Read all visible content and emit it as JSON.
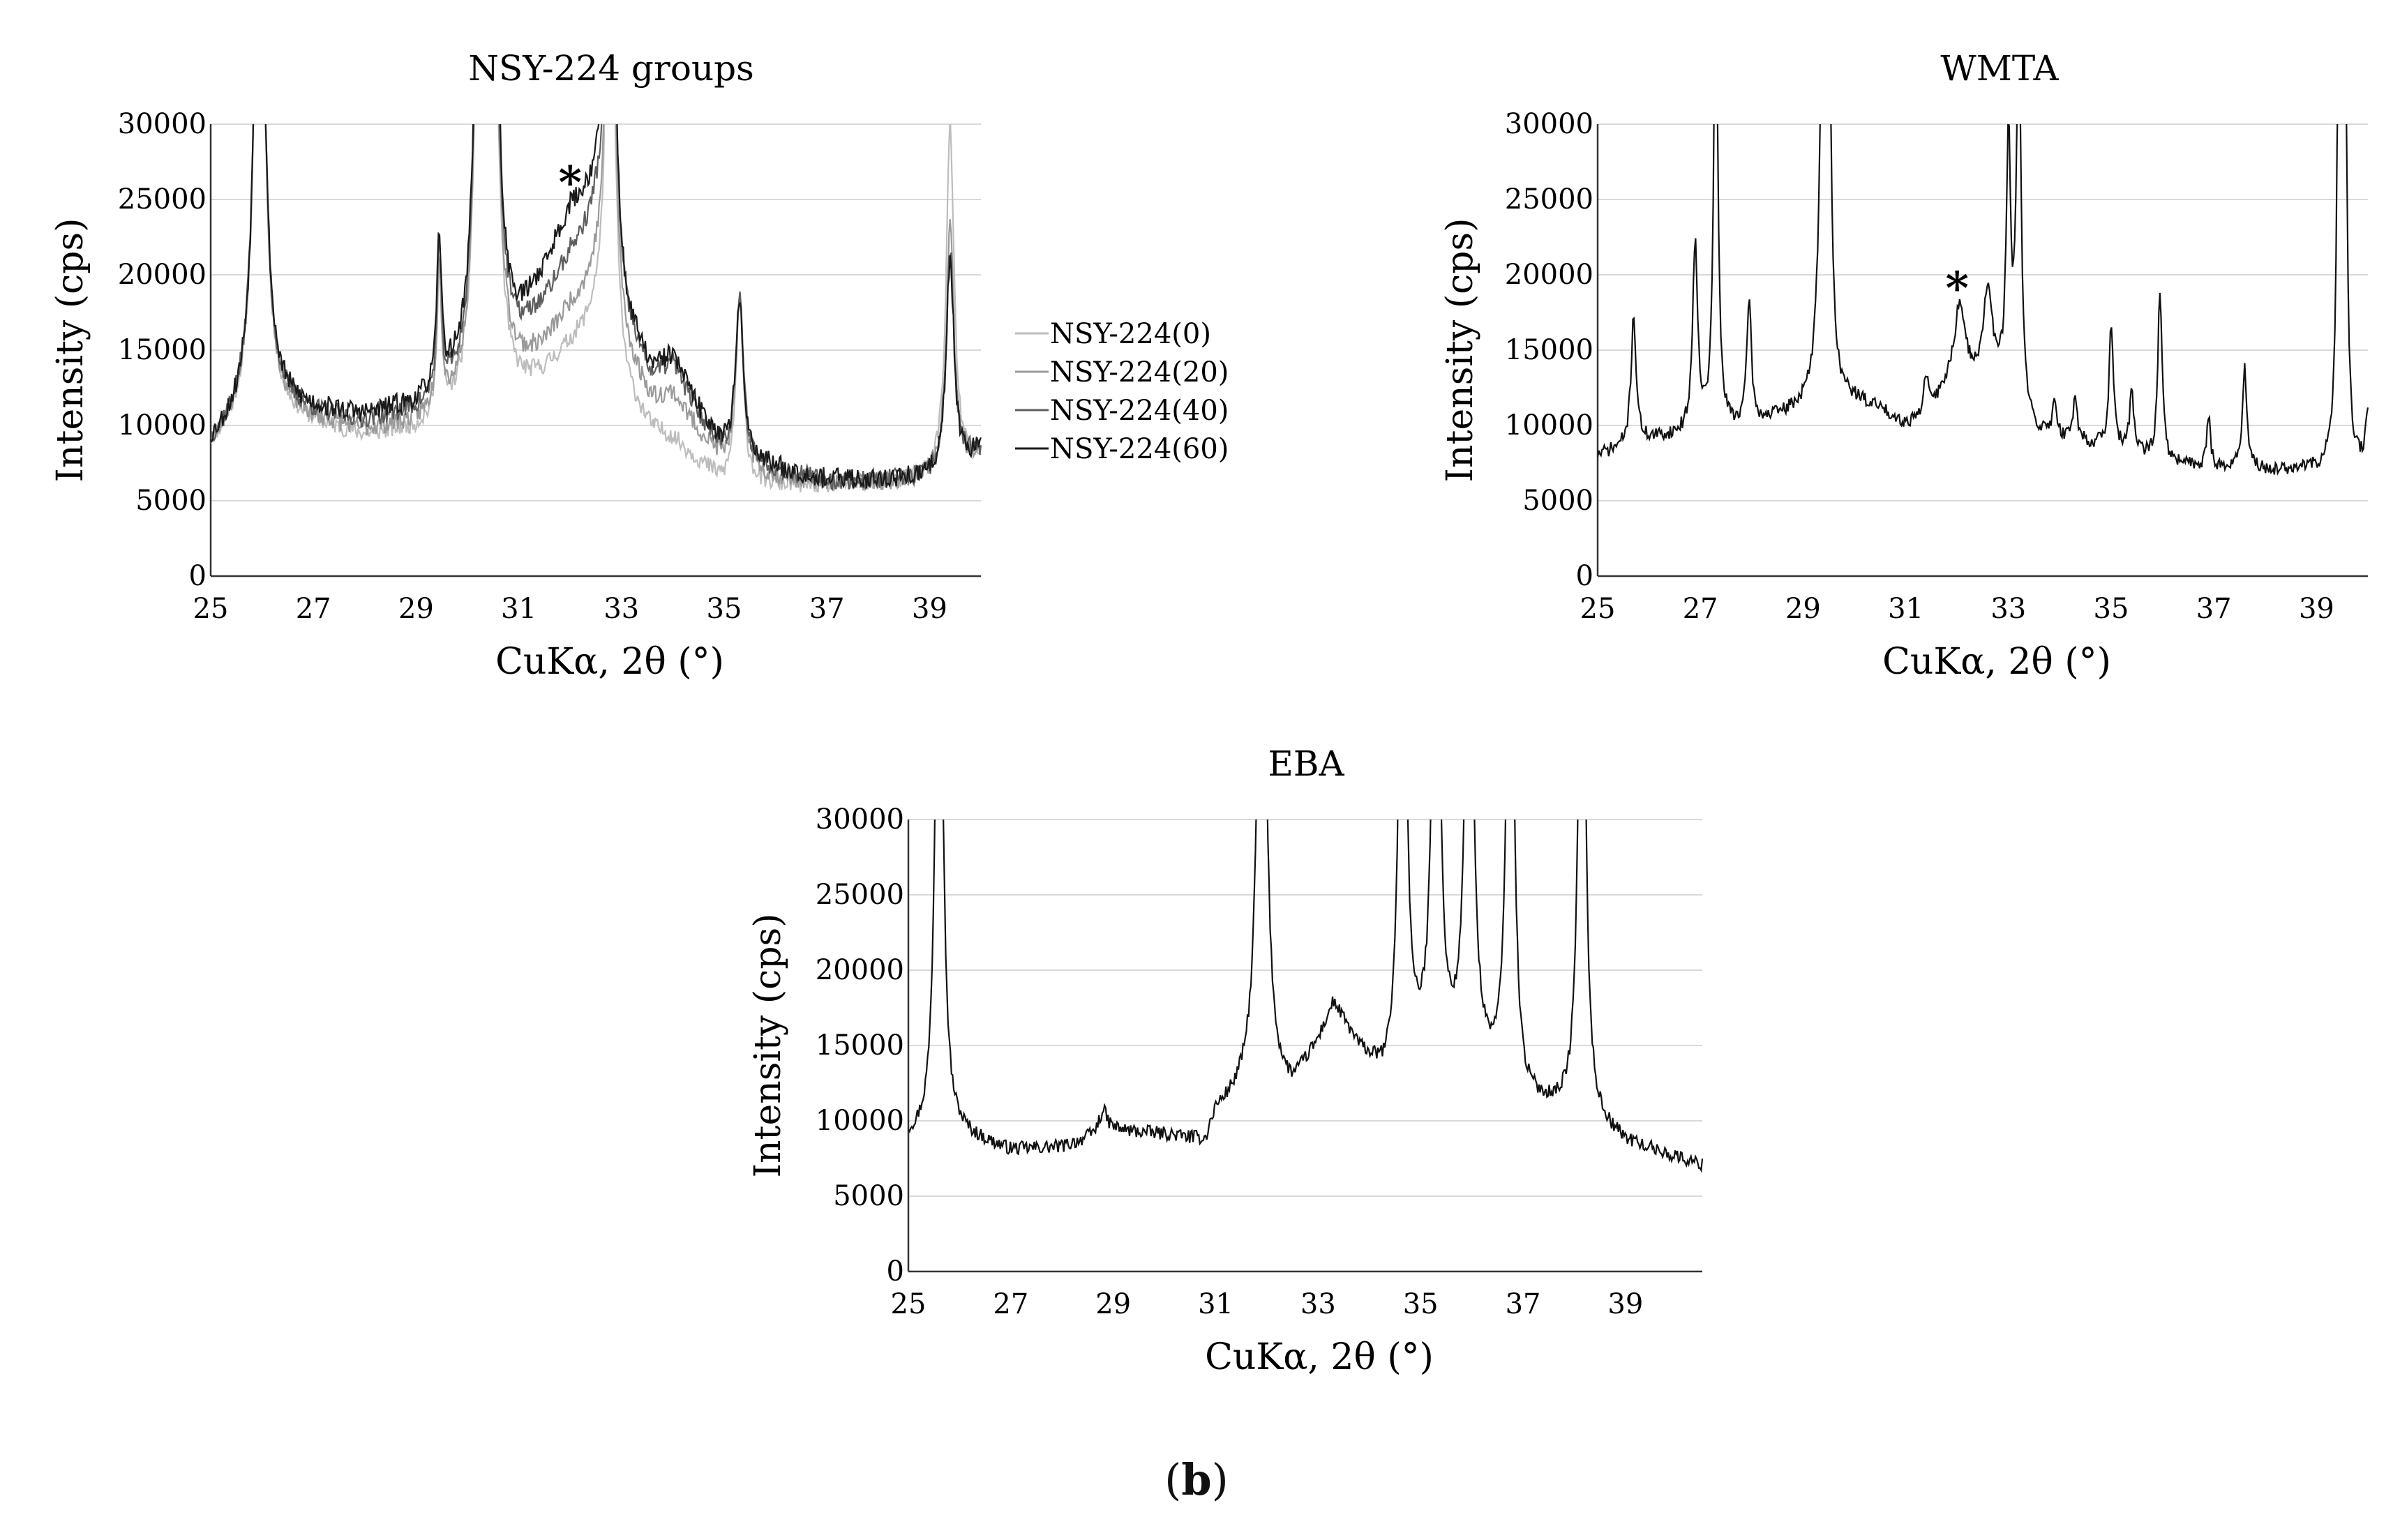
{
  "caption": {
    "open": "(",
    "letter": "b",
    "close": ")"
  },
  "chart_data": [
    {
      "id": "nsy",
      "type": "line",
      "title": "NSY-224 groups",
      "xlabel": "CuKα, 2θ (°)",
      "ylabel": "Intensity (cps)",
      "xlim": [
        25,
        40
      ],
      "ylim": [
        0,
        30000
      ],
      "xticks": [
        25,
        27,
        29,
        31,
        33,
        35,
        37,
        39
      ],
      "yticks": [
        0,
        5000,
        10000,
        15000,
        20000,
        25000,
        30000
      ],
      "grid": "horizontal",
      "legend_position": "right",
      "annotation": {
        "text": "*",
        "x": 32.0,
        "y": 26500
      },
      "series": [
        {
          "name": "NSY-224(0)",
          "color": "#bdbdbd",
          "base": [
            [
              25,
              8500
            ],
            [
              25.7,
              10500
            ],
            [
              26.3,
              10800
            ],
            [
              27,
              10000
            ],
            [
              28,
              9200
            ],
            [
              29,
              9600
            ],
            [
              30,
              10800
            ],
            [
              31,
              12000
            ],
            [
              31.5,
              13200
            ],
            [
              32,
              15000
            ],
            [
              32.5,
              16500
            ],
            [
              33,
              12000
            ],
            [
              33.6,
              9500
            ],
            [
              34,
              9000
            ],
            [
              34.5,
              7500
            ],
            [
              35,
              6000
            ],
            [
              35.5,
              6000
            ],
            [
              36,
              6000
            ],
            [
              37,
              6000
            ],
            [
              38,
              6000
            ],
            [
              39,
              6500
            ],
            [
              40,
              7800
            ]
          ],
          "peaks": [
            [
              25.95,
              38000,
              0.12
            ],
            [
              29.45,
              10000,
              0.05
            ],
            [
              30.25,
              36000,
              0.11
            ],
            [
              30.5,
              30000,
              0.11
            ],
            [
              32.78,
              38000,
              0.09
            ],
            [
              35.3,
              12000,
              0.09
            ],
            [
              39.4,
              23000,
              0.09
            ]
          ],
          "seed": 11,
          "noise": 600
        },
        {
          "name": "NSY-224(20)",
          "color": "#9a9a9a",
          "base": [
            [
              25,
              8500
            ],
            [
              25.7,
              10800
            ],
            [
              26.3,
              11000
            ],
            [
              27,
              10300
            ],
            [
              28,
              9600
            ],
            [
              29,
              10100
            ],
            [
              30,
              11500
            ],
            [
              31,
              13500
            ],
            [
              31.5,
              15000
            ],
            [
              32,
              17500
            ],
            [
              32.5,
              19000
            ],
            [
              33,
              14500
            ],
            [
              33.6,
              11500
            ],
            [
              34,
              12000
            ],
            [
              34.5,
              9500
            ],
            [
              35,
              7500
            ],
            [
              35.5,
              7000
            ],
            [
              36,
              6500
            ],
            [
              37,
              6200
            ],
            [
              38,
              6200
            ],
            [
              39,
              6500
            ],
            [
              40,
              8000
            ]
          ],
          "peaks": [
            [
              25.95,
              38000,
              0.12
            ],
            [
              29.45,
              10000,
              0.05
            ],
            [
              30.25,
              36000,
              0.11
            ],
            [
              30.5,
              30000,
              0.11
            ],
            [
              32.78,
              38000,
              0.09
            ],
            [
              35.3,
              11000,
              0.09
            ],
            [
              39.4,
              16000,
              0.09
            ]
          ],
          "seed": 23,
          "noise": 650
        },
        {
          "name": "NSY-224(40)",
          "color": "#5e5e5e",
          "base": [
            [
              25,
              8700
            ],
            [
              25.7,
              11000
            ],
            [
              26.3,
              11300
            ],
            [
              27,
              10700
            ],
            [
              28,
              10200
            ],
            [
              29,
              10800
            ],
            [
              30,
              12500
            ],
            [
              31,
              15500
            ],
            [
              31.5,
              17800
            ],
            [
              32,
              21000
            ],
            [
              32.5,
              23000
            ],
            [
              33,
              16500
            ],
            [
              33.6,
              13000
            ],
            [
              34,
              14000
            ],
            [
              34.5,
              10500
            ],
            [
              35,
              8300
            ],
            [
              35.5,
              7500
            ],
            [
              36,
              7000
            ],
            [
              37,
              6300
            ],
            [
              38,
              6300
            ],
            [
              39,
              6500
            ],
            [
              40,
              8200
            ]
          ],
          "peaks": [
            [
              25.95,
              38000,
              0.12
            ],
            [
              29.45,
              10000,
              0.05
            ],
            [
              30.25,
              36000,
              0.11
            ],
            [
              30.5,
              30000,
              0.11
            ],
            [
              32.78,
              38000,
              0.09
            ],
            [
              35.3,
              10500,
              0.09
            ],
            [
              39.4,
              14500,
              0.09
            ]
          ],
          "seed": 37,
          "noise": 650
        },
        {
          "name": "NSY-224(60)",
          "color": "#1a1a1a",
          "base": [
            [
              25,
              8800
            ],
            [
              25.7,
              11000
            ],
            [
              26.3,
              11500
            ],
            [
              27,
              11000
            ],
            [
              28,
              10600
            ],
            [
              29,
              11300
            ],
            [
              30,
              13500
            ],
            [
              31,
              16500
            ],
            [
              31.5,
              20000
            ],
            [
              32,
              24000
            ],
            [
              32.5,
              25000
            ],
            [
              33,
              17000
            ],
            [
              33.6,
              13500
            ],
            [
              34,
              14500
            ],
            [
              34.5,
              11000
            ],
            [
              35,
              8600
            ],
            [
              35.5,
              7800
            ],
            [
              36,
              7200
            ],
            [
              37,
              6400
            ],
            [
              38,
              6400
            ],
            [
              39,
              6500
            ],
            [
              40,
              8300
            ]
          ],
          "peaks": [
            [
              25.95,
              38000,
              0.12
            ],
            [
              29.45,
              10000,
              0.05
            ],
            [
              30.25,
              36000,
              0.11
            ],
            [
              30.5,
              30000,
              0.11
            ],
            [
              32.78,
              38000,
              0.09
            ],
            [
              35.3,
              10000,
              0.09
            ],
            [
              39.4,
              14000,
              0.09
            ]
          ],
          "seed": 53,
          "noise": 700
        }
      ]
    },
    {
      "id": "wmta",
      "type": "line",
      "title": "WMTA",
      "xlabel": "CuKα, 2θ (°)",
      "ylabel": "Intensity (cps)",
      "xlim": [
        25,
        40
      ],
      "ylim": [
        0,
        30000
      ],
      "xticks": [
        25,
        27,
        29,
        31,
        33,
        35,
        37,
        39
      ],
      "yticks": [
        0,
        5000,
        10000,
        15000,
        20000,
        25000,
        30000
      ],
      "grid": "horizontal",
      "annotation": {
        "text": "*",
        "x": 32.0,
        "y": 19500
      },
      "series": [
        {
          "name": "WMTA",
          "color": "#111111",
          "base": [
            [
              25,
              8000
            ],
            [
              26,
              9000
            ],
            [
              27,
              9500
            ],
            [
              28,
              10000
            ],
            [
              29,
              11000
            ],
            [
              30,
              11500
            ],
            [
              30.5,
              11000
            ],
            [
              31,
              10000
            ],
            [
              31.5,
              11000
            ],
            [
              32,
              14000
            ],
            [
              32.5,
              13000
            ],
            [
              33,
              12500
            ],
            [
              33.5,
              9500
            ],
            [
              34,
              9000
            ],
            [
              35,
              8500
            ],
            [
              36,
              7500
            ],
            [
              37,
              7200
            ],
            [
              38,
              7000
            ],
            [
              39,
              7000
            ],
            [
              40,
              7000
            ]
          ],
          "peaks": [
            [
              25.7,
              8500,
              0.06
            ],
            [
              26.9,
              12500,
              0.06
            ],
            [
              27.3,
              30000,
              0.05
            ],
            [
              27.95,
              8500,
              0.05
            ],
            [
              29.4,
              30000,
              0.08
            ],
            [
              29.5,
              20000,
              0.05
            ],
            [
              31.4,
              2500,
              0.05
            ],
            [
              32.05,
              4000,
              0.1
            ],
            [
              32.6,
              6000,
              0.1
            ],
            [
              33.0,
              16000,
              0.05
            ],
            [
              33.2,
              26000,
              0.05
            ],
            [
              33.9,
              2500,
              0.05
            ],
            [
              34.3,
              3000,
              0.05
            ],
            [
              35.0,
              8000,
              0.05
            ],
            [
              35.4,
              4000,
              0.05
            ],
            [
              35.95,
              11500,
              0.05
            ],
            [
              36.9,
              3500,
              0.04
            ],
            [
              37.6,
              7000,
              0.05
            ],
            [
              39.45,
              50000,
              0.04
            ],
            [
              39.55,
              35000,
              0.04
            ],
            [
              40.0,
              4000,
              0.05
            ]
          ],
          "seed": 71,
          "noise": 450
        }
      ]
    },
    {
      "id": "eba",
      "type": "line",
      "title": "EBA",
      "xlabel": "CuKα, 2θ (°)",
      "ylabel": "Intensity (cps)",
      "xlim": [
        25,
        40.5
      ],
      "ylim": [
        0,
        30000
      ],
      "xticks": [
        25,
        27,
        29,
        31,
        33,
        35,
        37,
        39
      ],
      "yticks": [
        0,
        5000,
        10000,
        15000,
        20000,
        25000,
        30000
      ],
      "grid": "horizontal",
      "series": [
        {
          "name": "EBA",
          "color": "#111111",
          "base": [
            [
              25,
              8800
            ],
            [
              26,
              9000
            ],
            [
              27,
              8000
            ],
            [
              28,
              8200
            ],
            [
              29,
              9300
            ],
            [
              30,
              9000
            ],
            [
              30.8,
              8500
            ],
            [
              31,
              10500
            ],
            [
              31.6,
              12000
            ],
            [
              32.5,
              12000
            ],
            [
              33,
              15000
            ],
            [
              33.3,
              17500
            ],
            [
              33.8,
              14500
            ],
            [
              34.3,
              12500
            ],
            [
              35,
              14000
            ],
            [
              36,
              14000
            ],
            [
              37,
              11000
            ],
            [
              38,
              10500
            ],
            [
              39,
              8500
            ],
            [
              40,
              7500
            ],
            [
              40.5,
              7000
            ]
          ],
          "peaks": [
            [
              25.6,
              45000,
              0.08
            ],
            [
              28.8,
              1500,
              0.1
            ],
            [
              31.9,
              40000,
              0.1
            ],
            [
              34.65,
              40000,
              0.08
            ],
            [
              35.3,
              40000,
              0.08
            ],
            [
              35.95,
              40000,
              0.08
            ],
            [
              36.75,
              40000,
              0.08
            ],
            [
              38.15,
              40000,
              0.08
            ]
          ],
          "seed": 97,
          "noise": 450
        }
      ]
    }
  ]
}
